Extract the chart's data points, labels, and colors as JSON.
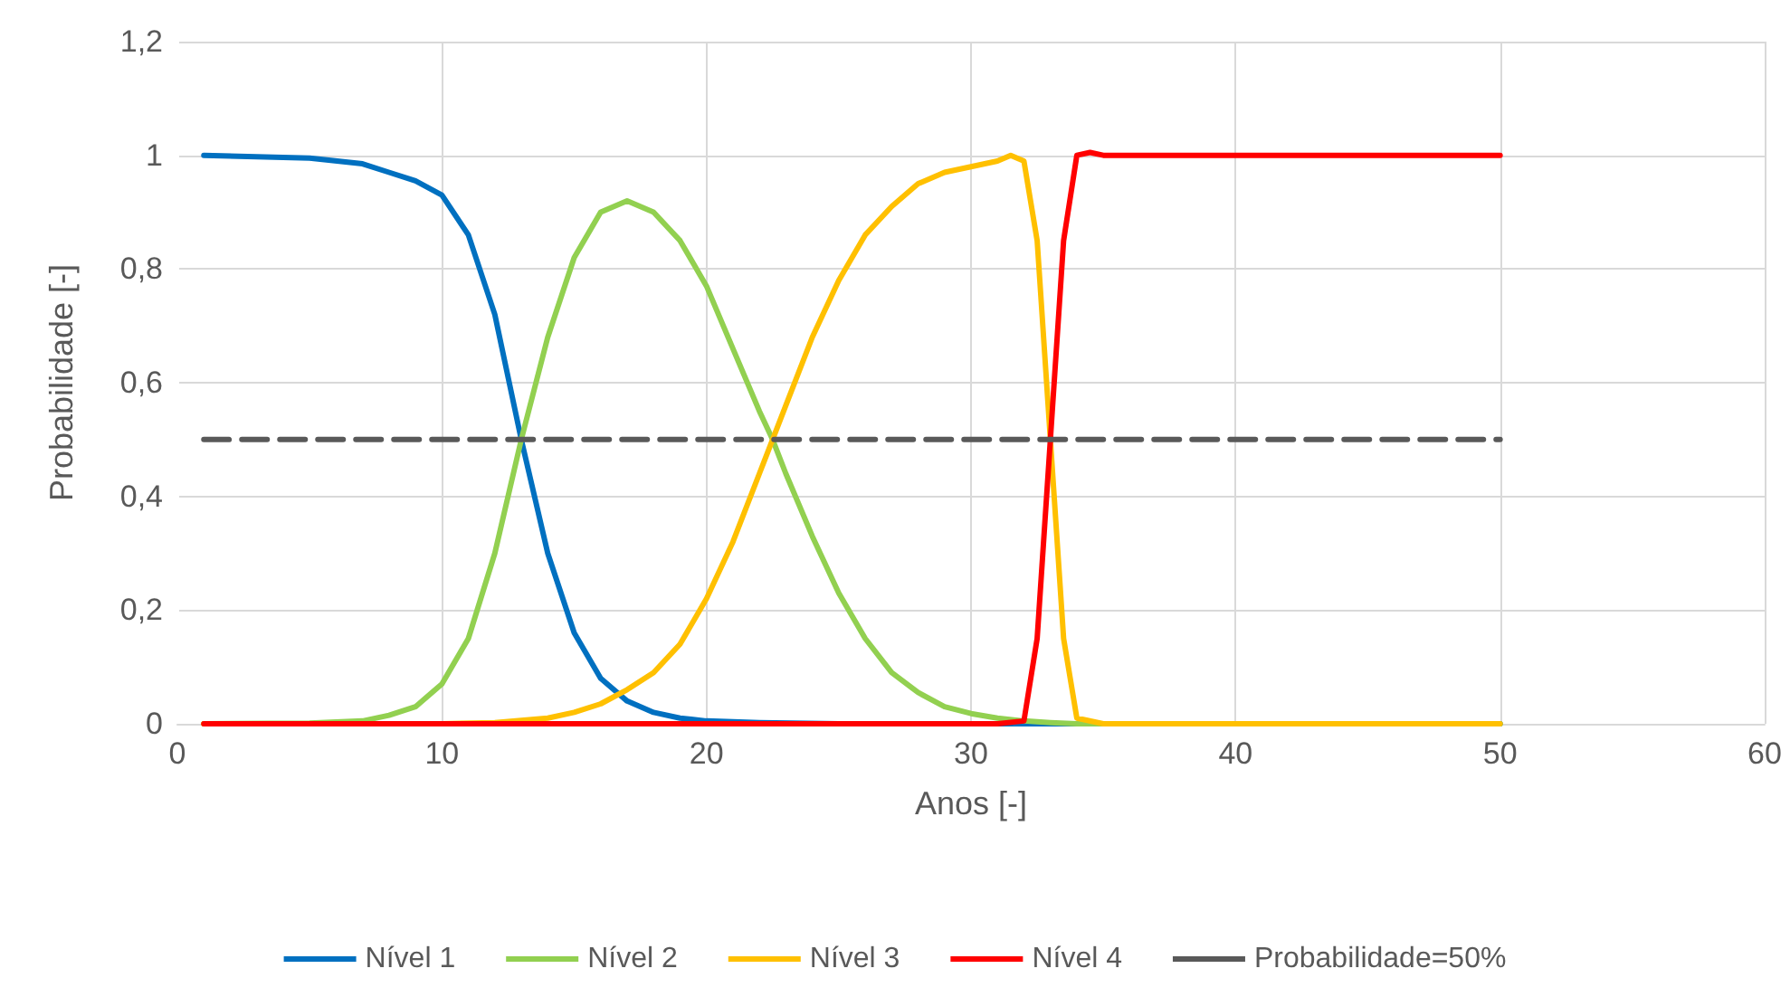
{
  "chart_data": {
    "type": "line",
    "xlabel": "Anos [-]",
    "ylabel": "Probabilidade [-]",
    "xlim": [
      0,
      60
    ],
    "xticks": [
      0,
      10,
      20,
      30,
      40,
      50,
      60
    ],
    "ylim": [
      0,
      1.2
    ],
    "yticks": [
      {
        "value": 0,
        "label": "0"
      },
      {
        "value": 0.2,
        "label": "0,2"
      },
      {
        "value": 0.4,
        "label": "0,4"
      },
      {
        "value": 0.6,
        "label": "0,6"
      },
      {
        "value": 0.8,
        "label": "0,8"
      },
      {
        "value": 1,
        "label": "1"
      },
      {
        "value": 1.2,
        "label": "1,2"
      }
    ],
    "grid": true,
    "legend": "bottom",
    "marker": "none",
    "series": [
      {
        "name": "Nível 1",
        "color": "#0070c0",
        "x": [
          1,
          5,
          7,
          8,
          9,
          10,
          11,
          12,
          13,
          14,
          15,
          16,
          17,
          18,
          19,
          20,
          22,
          25,
          50
        ],
        "values": [
          1,
          0.995,
          0.985,
          0.97,
          0.955,
          0.93,
          0.86,
          0.72,
          0.5,
          0.3,
          0.16,
          0.08,
          0.04,
          0.02,
          0.01,
          0.005,
          0.002,
          0,
          0
        ]
      },
      {
        "name": "Nível 2",
        "color": "#92d050",
        "x": [
          1,
          5,
          7,
          8,
          9,
          10,
          11,
          12,
          13,
          14,
          15,
          16,
          17,
          18,
          19,
          20,
          21,
          22,
          22.5,
          23,
          24,
          25,
          26,
          27,
          28,
          29,
          30,
          31,
          32,
          33,
          34,
          50
        ],
        "values": [
          0,
          0.001,
          0.005,
          0.015,
          0.03,
          0.07,
          0.15,
          0.3,
          0.5,
          0.68,
          0.82,
          0.9,
          0.92,
          0.9,
          0.85,
          0.77,
          0.66,
          0.55,
          0.5,
          0.44,
          0.33,
          0.23,
          0.15,
          0.09,
          0.055,
          0.03,
          0.018,
          0.01,
          0.005,
          0.002,
          0,
          0
        ]
      },
      {
        "name": "Nível 3",
        "color": "#ffc000",
        "x": [
          1,
          10,
          12,
          14,
          15,
          16,
          17,
          18,
          19,
          20,
          21,
          22,
          22.5,
          23,
          24,
          25,
          26,
          27,
          28,
          29,
          30,
          31,
          31.5,
          32,
          32.5,
          33,
          33.5,
          34,
          35,
          50
        ],
        "values": [
          0,
          0,
          0.002,
          0.01,
          0.02,
          0.035,
          0.06,
          0.09,
          0.14,
          0.22,
          0.32,
          0.44,
          0.5,
          0.56,
          0.68,
          0.78,
          0.86,
          0.91,
          0.95,
          0.97,
          0.98,
          0.99,
          1,
          0.99,
          0.85,
          0.5,
          0.15,
          0.01,
          0,
          0
        ]
      },
      {
        "name": "Nível 4",
        "color": "#ff0000",
        "x": [
          1,
          31,
          32,
          32.5,
          33,
          33.5,
          34,
          34.5,
          35,
          50
        ],
        "values": [
          0,
          0,
          0.005,
          0.15,
          0.5,
          0.85,
          1,
          1.005,
          1,
          1
        ]
      },
      {
        "name": "Probabilidade=50%",
        "color": "#595959",
        "line_style": "dashed",
        "x": [
          1,
          50
        ],
        "values": [
          0.5,
          0.5
        ]
      }
    ]
  }
}
